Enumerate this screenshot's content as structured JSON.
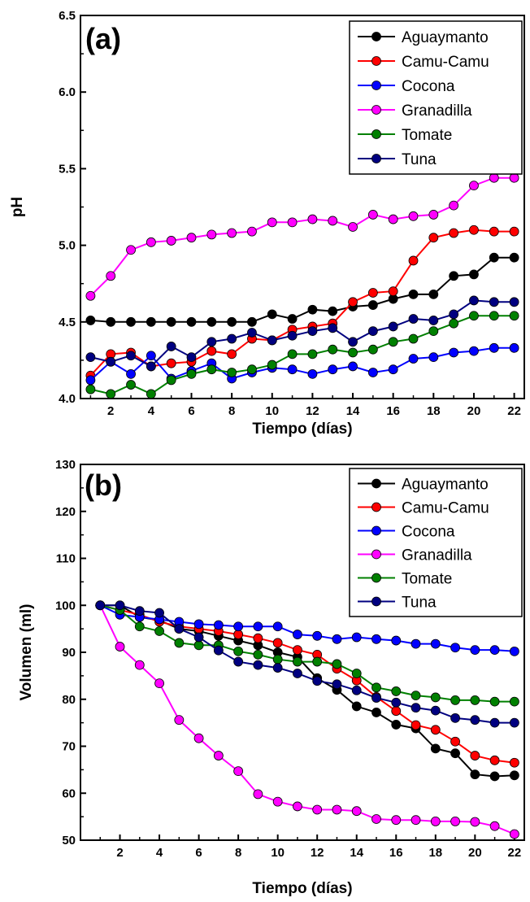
{
  "chart_data": [
    {
      "type": "line",
      "panel_label": "(a)",
      "xlabel": "Tiempo (días)",
      "ylabel": "pH",
      "xlim": [
        0.5,
        22.5
      ],
      "ylim": [
        4.0,
        6.5
      ],
      "xticks": [
        2,
        4,
        6,
        8,
        10,
        12,
        14,
        16,
        18,
        20,
        22
      ],
      "yticks": [
        4.0,
        4.5,
        5.0,
        5.5,
        6.0,
        6.5
      ],
      "ytick_labels": [
        "4.0",
        "4.5",
        "5.0",
        "5.5",
        "6.0",
        "6.5"
      ],
      "legend_position": "top-right",
      "grid": false,
      "x": [
        1,
        2,
        3,
        4,
        5,
        6,
        7,
        8,
        9,
        10,
        11,
        12,
        13,
        14,
        15,
        16,
        17,
        18,
        19,
        20,
        21,
        22
      ],
      "series": [
        {
          "name": "Aguaymanto",
          "color": "#000000",
          "values": [
            4.51,
            4.5,
            4.5,
            4.5,
            4.5,
            4.5,
            4.5,
            4.5,
            4.5,
            4.55,
            4.52,
            4.58,
            4.57,
            4.6,
            4.61,
            4.65,
            4.68,
            4.68,
            4.8,
            4.81,
            4.92,
            4.92
          ]
        },
        {
          "name": "Camu-Camu",
          "color": "#ff0000",
          "values": [
            4.15,
            4.29,
            4.3,
            4.21,
            4.23,
            4.24,
            4.31,
            4.29,
            4.39,
            4.38,
            4.45,
            4.47,
            4.49,
            4.63,
            4.69,
            4.7,
            4.9,
            5.05,
            5.08,
            5.1,
            5.09,
            5.09
          ]
        },
        {
          "name": "Cocona",
          "color": "#0000ff",
          "values": [
            4.12,
            4.24,
            4.16,
            4.28,
            4.13,
            4.18,
            4.23,
            4.13,
            4.17,
            4.2,
            4.19,
            4.16,
            4.19,
            4.21,
            4.17,
            4.19,
            4.26,
            4.27,
            4.3,
            4.31,
            4.33,
            4.33
          ]
        },
        {
          "name": "Granadilla",
          "color": "#ff00ff",
          "values": [
            4.67,
            4.8,
            4.97,
            5.02,
            5.03,
            5.05,
            5.07,
            5.08,
            5.09,
            5.15,
            5.15,
            5.17,
            5.16,
            5.12,
            5.2,
            5.17,
            5.19,
            5.2,
            5.26,
            5.39,
            5.44,
            5.44
          ]
        },
        {
          "name": "Tomate",
          "color": "#008000",
          "values": [
            4.06,
            4.03,
            4.09,
            4.03,
            4.12,
            4.16,
            4.19,
            4.17,
            4.19,
            4.22,
            4.29,
            4.29,
            4.32,
            4.3,
            4.32,
            4.37,
            4.39,
            4.44,
            4.49,
            4.54,
            4.54,
            4.54
          ]
        },
        {
          "name": "Tuna",
          "color": "#000080",
          "values": [
            4.27,
            4.24,
            4.28,
            4.21,
            4.34,
            4.27,
            4.37,
            4.39,
            4.43,
            4.38,
            4.41,
            4.44,
            4.46,
            4.37,
            4.44,
            4.47,
            4.52,
            4.51,
            4.55,
            4.64,
            4.63,
            4.63
          ]
        }
      ]
    },
    {
      "type": "line",
      "panel_label": "(b)",
      "xlabel": "Tiempo (días)",
      "ylabel": "Volumen (ml)",
      "xlim": [
        0,
        22.5
      ],
      "ylim": [
        50,
        130
      ],
      "xticks": [
        2,
        4,
        6,
        8,
        10,
        12,
        14,
        16,
        18,
        20,
        22
      ],
      "yticks": [
        50,
        60,
        70,
        80,
        90,
        100,
        110,
        120,
        130
      ],
      "ytick_labels": [
        "50",
        "60",
        "70",
        "80",
        "90",
        "100",
        "110",
        "120",
        "130"
      ],
      "legend_position": "top-right",
      "grid": false,
      "x": [
        1,
        2,
        3,
        4,
        5,
        6,
        7,
        8,
        9,
        10,
        11,
        12,
        13,
        14,
        15,
        16,
        17,
        18,
        19,
        20,
        21,
        22
      ],
      "series": [
        {
          "name": "Aguaymanto",
          "color": "#000000",
          "values": [
            100.0,
            100.0,
            97.5,
            96.8,
            95.0,
            94.5,
            93.5,
            92.5,
            91.5,
            90.0,
            89.0,
            84.5,
            82.0,
            78.5,
            77.2,
            74.6,
            73.8,
            69.5,
            68.5,
            64.0,
            63.6,
            63.8
          ]
        },
        {
          "name": "Camu-Camu",
          "color": "#ff0000",
          "values": [
            100.0,
            99.0,
            98.0,
            96.5,
            95.5,
            95.0,
            94.5,
            93.8,
            93.0,
            92.0,
            90.5,
            89.5,
            86.5,
            84.0,
            80.5,
            77.5,
            74.5,
            73.5,
            71.0,
            68.0,
            67.0,
            66.5
          ]
        },
        {
          "name": "Cocona",
          "color": "#0000ff",
          "values": [
            100.0,
            98.0,
            97.5,
            97.0,
            96.5,
            96.0,
            95.8,
            95.5,
            95.5,
            95.5,
            93.8,
            93.5,
            92.8,
            93.2,
            92.8,
            92.5,
            91.8,
            91.8,
            91.0,
            90.5,
            90.5,
            90.2
          ]
        },
        {
          "name": "Granadilla",
          "color": "#ff00ff",
          "values": [
            100.0,
            91.2,
            87.3,
            83.4,
            75.6,
            71.7,
            68.0,
            64.7,
            59.8,
            58.2,
            57.2,
            56.5,
            56.5,
            56.2,
            54.5,
            54.3,
            54.3,
            54.0,
            54.0,
            53.9,
            53.0,
            51.3
          ]
        },
        {
          "name": "Tomate",
          "color": "#008000",
          "values": [
            100.0,
            99.0,
            95.5,
            94.5,
            92.0,
            91.5,
            91.5,
            90.2,
            89.5,
            88.5,
            88.0,
            88.0,
            87.5,
            85.5,
            82.5,
            81.7,
            80.8,
            80.4,
            79.8,
            79.8,
            79.5,
            79.5
          ]
        },
        {
          "name": "Tuna",
          "color": "#000080",
          "values": [
            100.0,
            100.0,
            98.8,
            98.4,
            95.0,
            93.2,
            90.4,
            88.0,
            87.3,
            86.7,
            85.5,
            83.9,
            83.2,
            81.9,
            80.3,
            79.3,
            78.2,
            77.6,
            76.0,
            75.6,
            75.0,
            75.0
          ]
        }
      ]
    }
  ]
}
